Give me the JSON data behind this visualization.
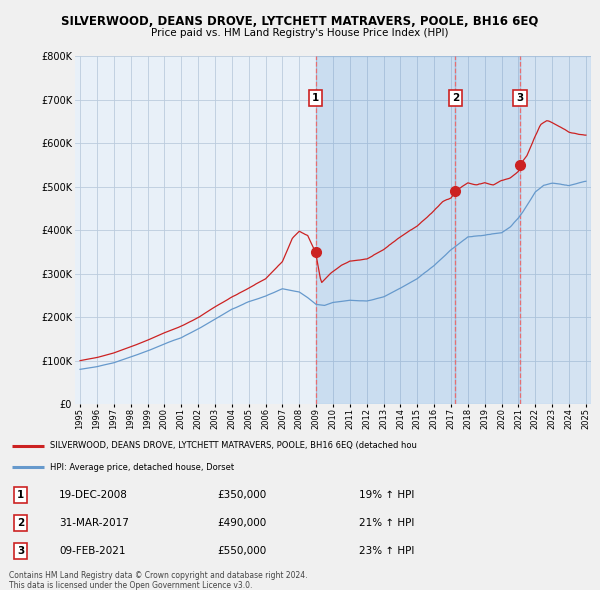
{
  "title": "SILVERWOOD, DEANS DROVE, LYTCHETT MATRAVERS, POOLE, BH16 6EQ",
  "subtitle": "Price paid vs. HM Land Registry's House Price Index (HPI)",
  "ylim": [
    0,
    800000
  ],
  "yticks": [
    0,
    100000,
    200000,
    300000,
    400000,
    500000,
    600000,
    700000,
    800000
  ],
  "ytick_labels": [
    "£0",
    "£100K",
    "£200K",
    "£300K",
    "£400K",
    "£500K",
    "£600K",
    "£700K",
    "£800K"
  ],
  "xlim_start": 1994.7,
  "xlim_end": 2025.3,
  "xticks": [
    1995,
    1996,
    1997,
    1998,
    1999,
    2000,
    2001,
    2002,
    2003,
    2004,
    2005,
    2006,
    2007,
    2008,
    2009,
    2010,
    2011,
    2012,
    2013,
    2014,
    2015,
    2016,
    2017,
    2018,
    2019,
    2020,
    2021,
    2022,
    2023,
    2024,
    2025
  ],
  "sale_dates": [
    2008.97,
    2017.25,
    2021.1
  ],
  "sale_prices": [
    350000,
    490000,
    550000
  ],
  "sale_labels": [
    "1",
    "2",
    "3"
  ],
  "line_color_red": "#cc2222",
  "line_color_blue": "#6699cc",
  "shade_color": "#d0e4f5",
  "vline_color": "#dd4444",
  "grid_color": "#cccccc",
  "chart_bg_color": "#e8f0f8",
  "bg_color": "#f5f5f5",
  "legend_label_red": "SILVERWOOD, DEANS DROVE, LYTCHETT MATRAVERS, POOLE, BH16 6EQ (detached hou",
  "legend_label_blue": "HPI: Average price, detached house, Dorset",
  "table_data": [
    {
      "num": "1",
      "date": "19-DEC-2008",
      "price": "£350,000",
      "hpi": "19% ↑ HPI"
    },
    {
      "num": "2",
      "date": "31-MAR-2017",
      "price": "£490,000",
      "hpi": "21% ↑ HPI"
    },
    {
      "num": "3",
      "date": "09-FEB-2021",
      "price": "£550,000",
      "hpi": "23% ↑ HPI"
    }
  ],
  "footer": "Contains HM Land Registry data © Crown copyright and database right 2024.\nThis data is licensed under the Open Government Licence v3.0.",
  "font_family": "DejaVu Sans"
}
